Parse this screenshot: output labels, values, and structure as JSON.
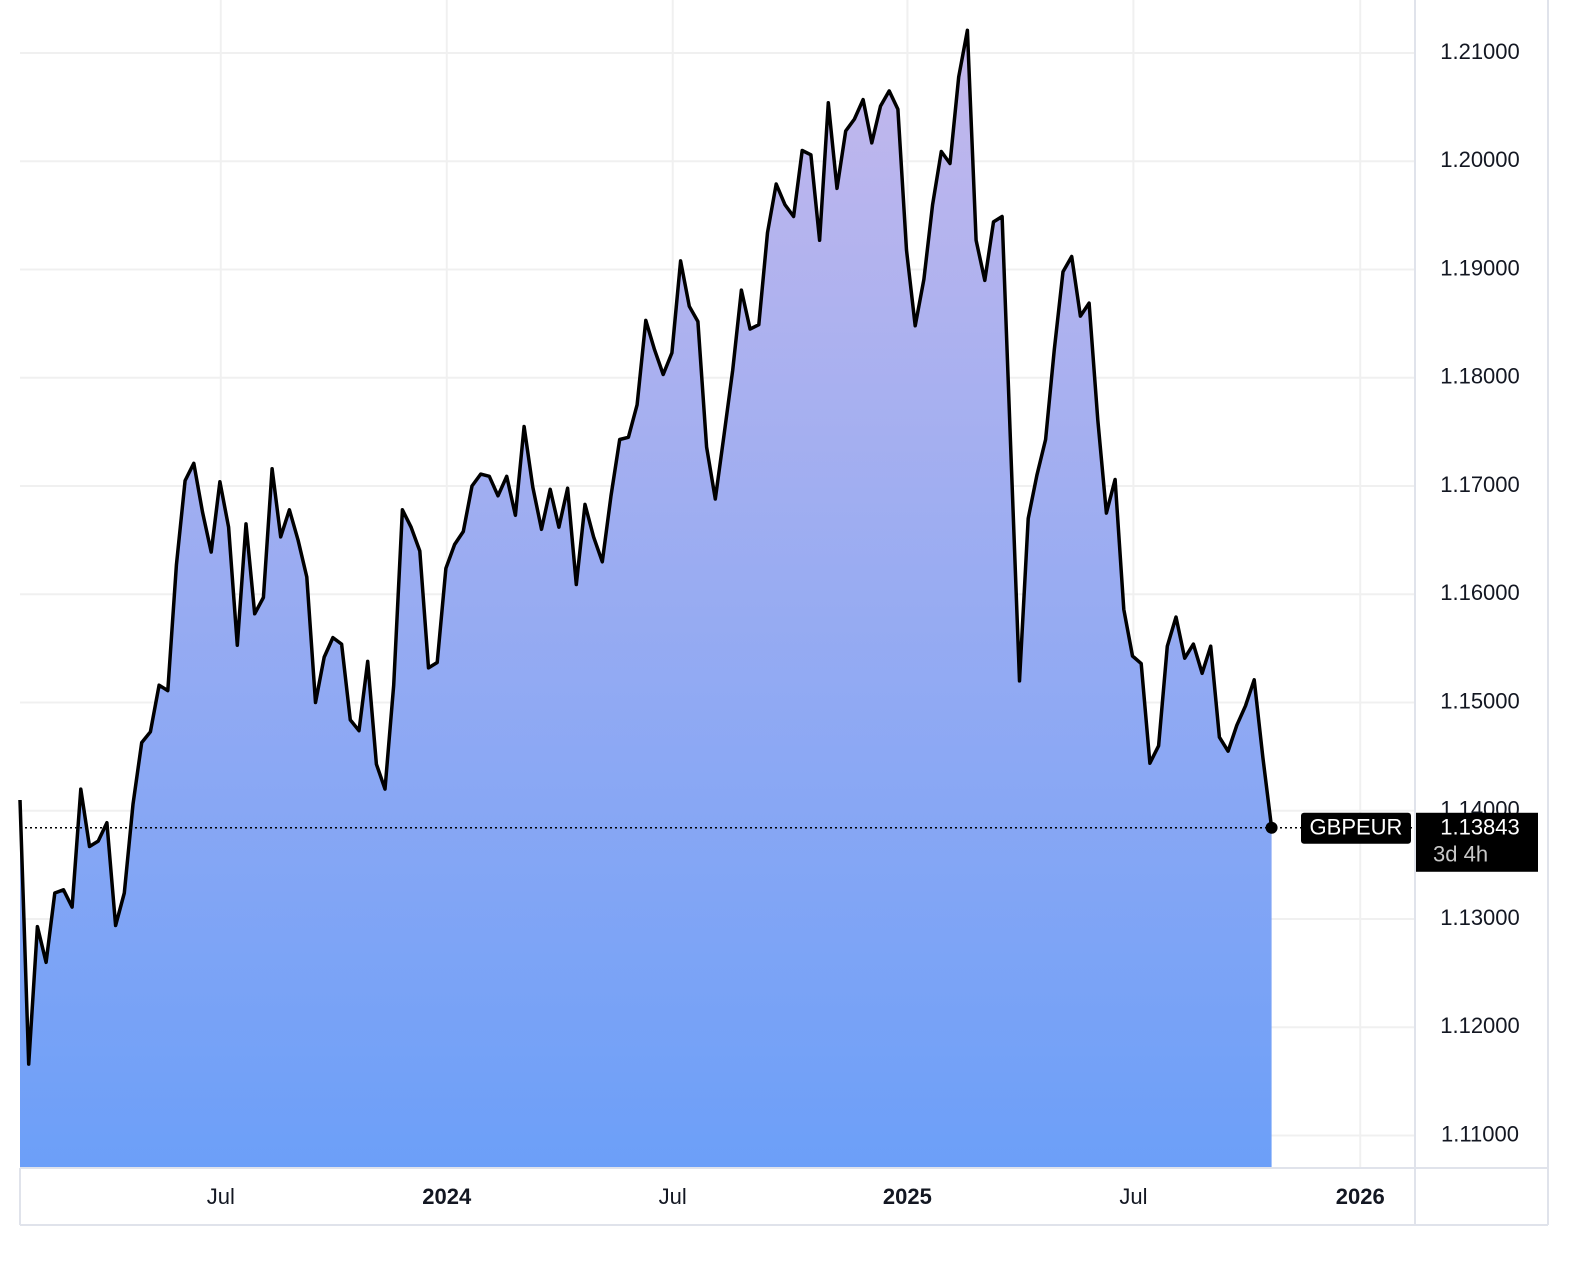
{
  "chart_data": {
    "type": "area",
    "x": [
      0,
      1,
      2,
      3,
      4,
      5,
      6,
      7,
      8,
      9,
      10,
      11,
      12,
      13,
      14,
      15,
      16,
      17,
      18,
      19,
      20,
      21,
      22,
      23,
      24,
      25,
      26,
      27,
      28,
      29,
      30,
      31,
      32,
      33,
      34,
      35,
      36,
      37,
      38,
      39,
      40,
      41,
      42,
      43,
      44,
      45,
      46,
      47,
      48,
      49,
      50,
      51,
      52,
      53,
      54,
      55,
      56,
      57,
      58,
      59,
      60,
      61,
      62,
      63,
      64,
      65,
      66,
      67,
      68,
      69,
      70,
      71,
      72,
      73,
      74,
      75,
      76,
      77,
      78,
      79,
      80,
      81,
      82,
      83,
      84,
      85,
      86,
      87,
      88,
      89,
      90,
      91,
      92,
      93,
      94,
      95,
      96,
      97,
      98,
      99,
      100,
      101,
      102,
      103,
      104,
      105,
      106,
      107,
      108,
      109,
      110,
      111,
      112,
      113,
      114,
      115,
      116,
      117,
      118,
      119,
      120,
      121,
      122,
      123,
      124,
      125,
      126,
      127,
      128,
      129,
      130,
      131,
      132,
      133,
      134,
      135,
      136,
      137,
      138,
      139,
      140,
      141,
      142,
      143,
      144
    ],
    "series": [
      {
        "name": "GBPEUR",
        "color": "#000000",
        "fill_top": "#c4b8ec",
        "fill_bottom": "#6c9ff8",
        "values": [
          1.141,
          1.1166,
          1.1293,
          1.126,
          1.1324,
          1.1327,
          1.1311,
          1.142,
          1.1367,
          1.1372,
          1.1389,
          1.1294,
          1.1324,
          1.1406,
          1.1463,
          1.1473,
          1.1516,
          1.1511,
          1.1627,
          1.1705,
          1.1721,
          1.1676,
          1.1639,
          1.1704,
          1.1662,
          1.1553,
          1.1665,
          1.1582,
          1.1597,
          1.1716,
          1.1653,
          1.1678,
          1.165,
          1.1616,
          1.15,
          1.1542,
          1.156,
          1.1554,
          1.1484,
          1.1474,
          1.1538,
          1.1443,
          1.142,
          1.1516,
          1.1678,
          1.1662,
          1.164,
          1.1532,
          1.1537,
          1.1624,
          1.1646,
          1.1658,
          1.17,
          1.1711,
          1.1709,
          1.1691,
          1.1709,
          1.1673,
          1.1755,
          1.1699,
          1.166,
          1.1697,
          1.1662,
          1.1698,
          1.1609,
          1.1683,
          1.1653,
          1.163,
          1.1691,
          1.1743,
          1.1745,
          1.1775,
          1.1853,
          1.1826,
          1.1803,
          1.1823,
          1.1908,
          1.1866,
          1.1852,
          1.1736,
          1.1688,
          1.1747,
          1.1807,
          1.1881,
          1.1845,
          1.1849,
          1.1934,
          1.1979,
          1.196,
          1.1949,
          1.201,
          1.2006,
          1.1927,
          1.2054,
          1.1975,
          1.2028,
          1.2039,
          1.2057,
          1.2017,
          1.2051,
          1.2065,
          1.2048,
          1.1918,
          1.1848,
          1.1891,
          1.196,
          1.2009,
          1.1998,
          1.2078,
          1.2121,
          1.1927,
          1.189,
          1.1944,
          1.1949,
          1.1733,
          1.152,
          1.167,
          1.171,
          1.1743,
          1.1826,
          1.1898,
          1.1912,
          1.1857,
          1.1869,
          1.1761,
          1.1675,
          1.1706,
          1.1586,
          1.1543,
          1.1536,
          1.1444,
          1.146,
          1.1552,
          1.1579,
          1.1541,
          1.1554,
          1.1527,
          1.1552,
          1.1468,
          1.1455,
          1.1479,
          1.1497,
          1.1521,
          1.1449,
          1.13843
        ]
      }
    ],
    "last_value_label": "1.13843",
    "countdown": "3d 4h",
    "xlim": [
      0,
      160.5
    ],
    "xticks": [
      {
        "value": 23.1,
        "label": "Jul"
      },
      {
        "value": 49.1,
        "label": "2024"
      },
      {
        "value": 75.1,
        "label": "Jul"
      },
      {
        "value": 102.1,
        "label": "2025"
      },
      {
        "value": 128.1,
        "label": "Jul"
      },
      {
        "value": 154.2,
        "label": "2026"
      }
    ],
    "ylim": [
      1.107,
      1.2149
    ],
    "yticks": [
      {
        "value": 1.11,
        "label": "1.11000"
      },
      {
        "value": 1.12,
        "label": "1.12000"
      },
      {
        "value": 1.13,
        "label": "1.13000"
      },
      {
        "value": 1.14,
        "label": "1.14000"
      },
      {
        "value": 1.15,
        "label": "1.15000"
      },
      {
        "value": 1.16,
        "label": "1.16000"
      },
      {
        "value": 1.17,
        "label": "1.17000"
      },
      {
        "value": 1.18,
        "label": "1.18000"
      },
      {
        "value": 1.19,
        "label": "1.19000"
      },
      {
        "value": 1.2,
        "label": "1.20000"
      },
      {
        "value": 1.21,
        "label": "1.21000"
      }
    ],
    "grid": true
  }
}
